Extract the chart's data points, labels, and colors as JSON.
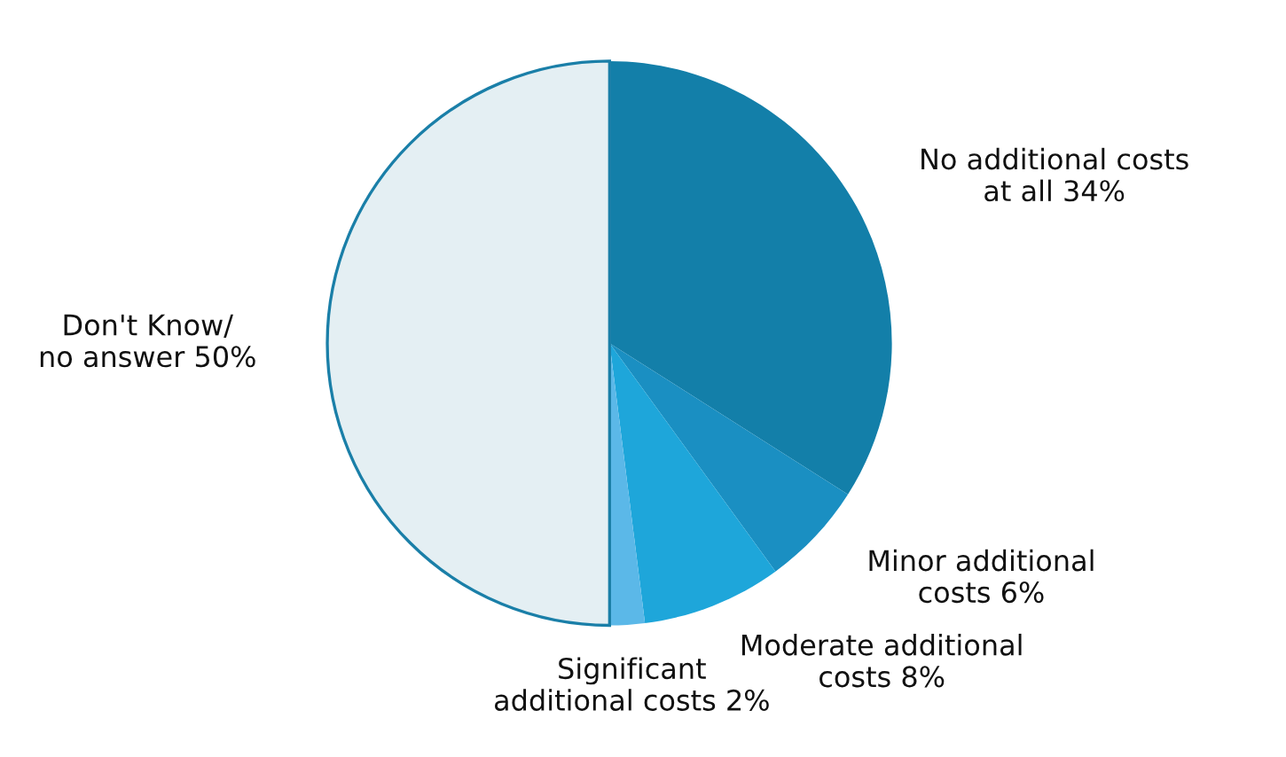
{
  "chart_data": {
    "type": "pie",
    "categories": [
      "No additional costs\nat all",
      "Minor additional\ncosts",
      "Moderate additional\ncosts",
      "Significant\nadditional costs",
      "Don't Know/\nno answer"
    ],
    "values": [
      34,
      6,
      8,
      2,
      50
    ],
    "value_labels": [
      "34%",
      "6%",
      "8%",
      "2%",
      "50%"
    ],
    "colors": [
      "#137fa9",
      "#1a8fc2",
      "#1ea6da",
      "#5bb8e8",
      "#e4eff3"
    ]
  }
}
